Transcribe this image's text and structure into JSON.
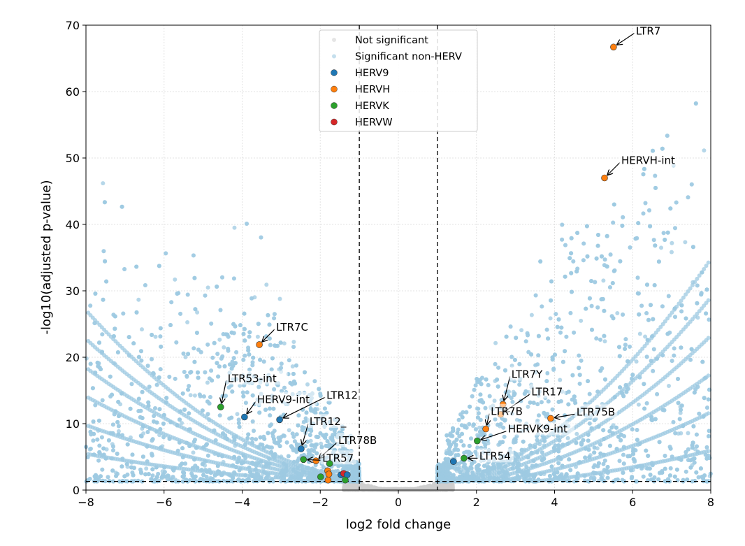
{
  "chart_data": {
    "type": "scatter",
    "xlabel": "log2 fold change",
    "ylabel": "-log10(adjusted p-value)",
    "xlim": [
      -8,
      8
    ],
    "ylim": [
      0,
      70
    ],
    "xticks": [
      "-8",
      "-6",
      "-4",
      "-2",
      "0",
      "2",
      "4",
      "6",
      "8"
    ],
    "yticks": [
      "0",
      "10",
      "20",
      "30",
      "40",
      "50",
      "60",
      "70"
    ],
    "grid": true,
    "legend_position": "top-center",
    "thresholds": {
      "log2fc": [
        -1,
        1
      ],
      "neg_log10_padj": 1.3
    },
    "legend": [
      {
        "label": "Not significant",
        "color": "#d3d3d3"
      },
      {
        "label": "Significant non-HERV",
        "color": "#9ecae1"
      },
      {
        "label": "HERV9",
        "color": "#1f77b4"
      },
      {
        "label": "HERVH",
        "color": "#ff7f0e"
      },
      {
        "label": "HERVK",
        "color": "#2ca02c"
      },
      {
        "label": "HERVW",
        "color": "#d62728"
      }
    ],
    "highlighted_points": [
      {
        "label": "LTR7",
        "family": "HERVH",
        "x": 5.51,
        "y": 66.7
      },
      {
        "label": "HERVH-int",
        "family": "HERVH",
        "x": 5.28,
        "y": 47.0
      },
      {
        "label": "LTR7C",
        "family": "HERVH",
        "x": -3.56,
        "y": 21.9
      },
      {
        "label": "LTR53-int",
        "family": "HERVK",
        "x": -4.55,
        "y": 12.5
      },
      {
        "label": "HERV9-int",
        "family": "HERV9",
        "x": -3.94,
        "y": 11.0
      },
      {
        "label": "LTR12",
        "family": "HERV9",
        "x": -3.04,
        "y": 10.6
      },
      {
        "label": "LTR12_",
        "family": "HERV9",
        "x": -2.49,
        "y": 6.2
      },
      {
        "label": "LTR78B",
        "family": "HERVH",
        "x": -2.11,
        "y": 4.4
      },
      {
        "label": "LTR57",
        "family": "HERVK",
        "x": -2.43,
        "y": 4.6
      },
      {
        "label": "LTR7Y",
        "family": "HERVH",
        "x": 2.68,
        "y": 12.9
      },
      {
        "label": "LTR17",
        "family": "HERVH",
        "x": 2.62,
        "y": 11.4
      },
      {
        "label": "LTR7B",
        "family": "HERVH",
        "x": 2.24,
        "y": 9.2
      },
      {
        "label": "LTR75B",
        "family": "HERVH",
        "x": 3.9,
        "y": 10.8
      },
      {
        "label": "HERVK9-int",
        "family": "HERVK",
        "x": 2.02,
        "y": 7.4
      },
      {
        "label": "LTR54",
        "family": "HERVK",
        "x": 1.68,
        "y": 4.8
      },
      {
        "label": "",
        "family": "HERV9",
        "x": 1.41,
        "y": 4.3
      },
      {
        "label": "",
        "family": "HERVK",
        "x": -1.76,
        "y": 4.0
      },
      {
        "label": "",
        "family": "HERVH",
        "x": -1.81,
        "y": 2.9
      },
      {
        "label": "",
        "family": "HERVH",
        "x": -1.78,
        "y": 2.4
      },
      {
        "label": "",
        "family": "HERVH",
        "x": -1.8,
        "y": 1.5
      },
      {
        "label": "",
        "family": "HERVK",
        "x": -1.99,
        "y": 2.0
      },
      {
        "label": "",
        "family": "HERV9",
        "x": -1.47,
        "y": 2.3
      },
      {
        "label": "",
        "family": "HERVW",
        "x": -1.4,
        "y": 2.5
      },
      {
        "label": "",
        "family": "HERV9",
        "x": -1.31,
        "y": 2.3
      },
      {
        "label": "",
        "family": "HERVK",
        "x": -1.36,
        "y": 1.5
      }
    ]
  }
}
